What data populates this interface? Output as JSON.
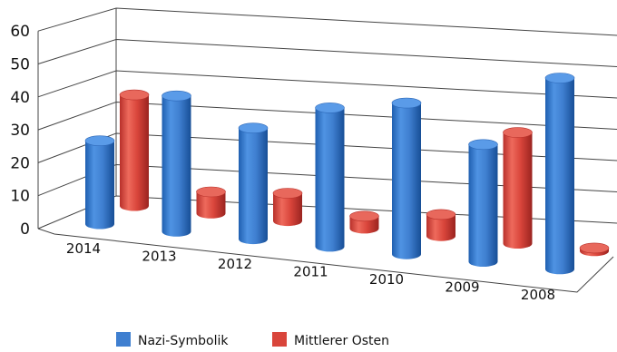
{
  "chart_data": {
    "type": "bar",
    "style": "3d-cylinder",
    "title": "",
    "xlabel": "",
    "ylabel": "",
    "ylim": [
      0,
      60
    ],
    "yticks": [
      0,
      10,
      20,
      30,
      40,
      50,
      60
    ],
    "grid": true,
    "legend_position": "bottom",
    "categories": [
      "2014",
      "2013",
      "2012",
      "2011",
      "2010",
      "2009",
      "2008"
    ],
    "series": [
      {
        "name": "Nazi-Symbolik",
        "color": "#3f7fd0",
        "values": [
          27,
          44,
          36,
          45,
          49,
          38,
          62
        ]
      },
      {
        "name": "Mittlerer Osten",
        "color": "#d9453b",
        "values": [
          36,
          7,
          9,
          4,
          7,
          36,
          1
        ]
      }
    ]
  }
}
